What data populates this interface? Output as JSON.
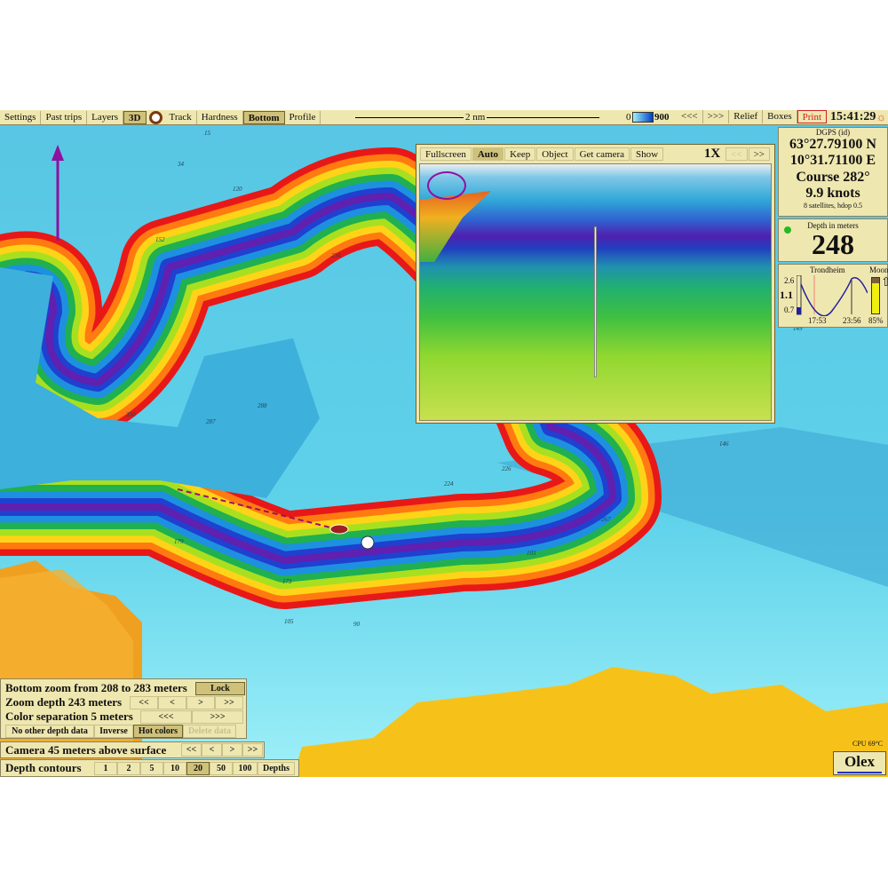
{
  "toolbar": {
    "left": [
      "Settings",
      "Past trips",
      "Layers",
      "3D"
    ],
    "mid": [
      "Track",
      "Hardness",
      "Bottom",
      "Profile"
    ],
    "scale_label": "2 nm",
    "depth_scale_min": "0",
    "depth_scale_max": "900",
    "right": [
      "<<<",
      ">>>",
      "Relief",
      "Boxes"
    ],
    "print": "Print",
    "clock": "15:41:29",
    "active": [
      "3D",
      "Bottom"
    ]
  },
  "view3d": {
    "buttons": [
      "Fullscreen",
      "Auto",
      "Keep",
      "Object",
      "Get camera",
      "Show"
    ],
    "active": "Auto",
    "zoom": "1X",
    "prev": "<<",
    "next": ">>"
  },
  "gps": {
    "source": "DGPS (id)",
    "lat": "63°27.79100 N",
    "lon": "10°31.71100 E",
    "course": "Course 282°",
    "speed": "9.9 knots",
    "sats": "8 satellites, hdop 0.5"
  },
  "depth": {
    "label": "Depth in meters",
    "value": "248",
    "status_color": "#22bb22"
  },
  "tide": {
    "place": "Trondheim",
    "moon": "Moon",
    "max": "2.6",
    "current": "1.1",
    "min": "0.7",
    "low_time": "17:53",
    "high_time": "23:56",
    "moon_pct": "85%",
    "moon_level": 0.85
  },
  "bottom_panel": {
    "zoom_range": "Bottom zoom from 208 to 283 meters",
    "lock": "Lock",
    "zoom_depth": "Zoom depth 243 meters",
    "zd_btns": [
      "<<",
      "<",
      ">",
      ">>"
    ],
    "color_sep": "Color separation 5 meters",
    "cs_btns": [
      "<<<",
      ">>>"
    ],
    "opts": [
      "No other depth data",
      "Inverse",
      "Hot colors",
      "Delete data"
    ],
    "camera": "Camera 45 meters above surface",
    "cam_btns": [
      "<<",
      "<",
      ">",
      ">>"
    ],
    "contours_label": "Depth contours",
    "contours": [
      "1",
      "2",
      "5",
      "10",
      "20",
      "50",
      "100",
      "Depths"
    ],
    "contour_active": "20"
  },
  "cpu": "CPU 69°C",
  "logo": "Olex",
  "soundings": [
    "15",
    "34",
    "120",
    "152",
    "234",
    "287",
    "310",
    "288",
    "224",
    "226",
    "179",
    "173",
    "105",
    "90",
    "146",
    "149",
    "103",
    "267"
  ],
  "colors": {
    "sea": "#5ccbe6",
    "land": "#f6c21a",
    "accent": "#d02020"
  }
}
